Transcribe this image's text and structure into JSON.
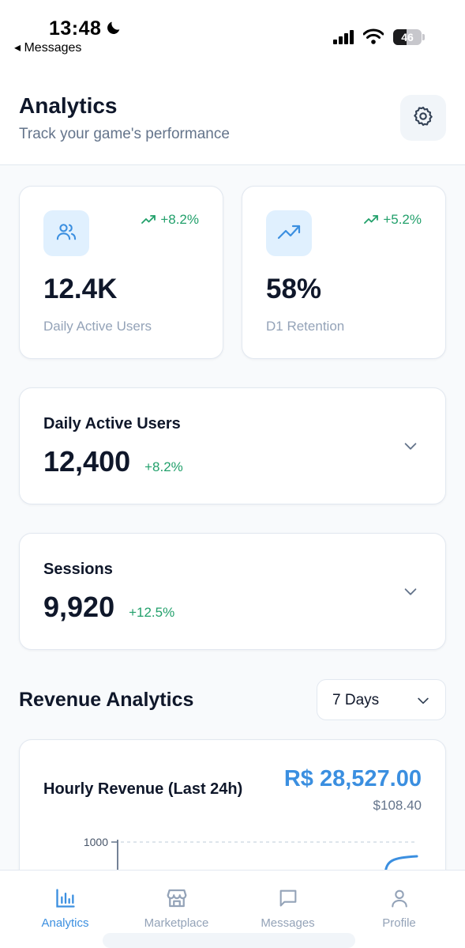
{
  "status_bar": {
    "time": "13:48",
    "back_label": "◂ Messages",
    "battery": "46",
    "battery_level": 0.46
  },
  "header": {
    "title": "Analytics",
    "subtitle": "Track your game's performance",
    "settings_icon": "gear-icon"
  },
  "stat_cards": [
    {
      "icon": "users-icon",
      "trend": "+8.2%",
      "value": "12.4K",
      "label": "Daily Active Users"
    },
    {
      "icon": "trending-up-icon",
      "trend": "+5.2%",
      "value": "58%",
      "label": "D1 Retention"
    }
  ],
  "metrics": [
    {
      "title": "Daily Active Users",
      "value": "12,400",
      "change": "+8.2%"
    },
    {
      "title": "Sessions",
      "value": "9,920",
      "change": "+12.5%"
    }
  ],
  "revenue": {
    "section_title": "Revenue Analytics",
    "range": "7 Days",
    "chart_title": "Hourly Revenue (Last 24h)",
    "total": "R$ 28,527.00",
    "sub_value": "$108.40",
    "y_tick": "1000"
  },
  "nav": [
    {
      "label": "Analytics",
      "icon": "bar-chart-icon",
      "active": true
    },
    {
      "label": "Marketplace",
      "icon": "store-icon",
      "active": false
    },
    {
      "label": "Messages",
      "icon": "message-icon",
      "active": false
    },
    {
      "label": "Profile",
      "icon": "user-icon",
      "active": false
    }
  ],
  "colors": {
    "accent": "#3b8fe0",
    "positive": "#22a06b",
    "muted": "#94a3b8"
  }
}
